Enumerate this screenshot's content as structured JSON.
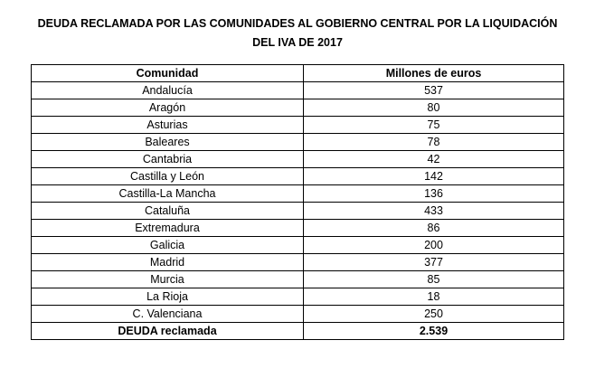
{
  "title": {
    "line1": "DEUDA RECLAMADA POR LAS COMUNIDADES AL GOBIERNO CENTRAL POR LA LIQUIDACIÓN",
    "line2": "DEL IVA DE 2017"
  },
  "table": {
    "headers": [
      "Comunidad",
      "Millones de euros"
    ],
    "rows": [
      [
        "Andalucía",
        "537"
      ],
      [
        "Aragón",
        "80"
      ],
      [
        "Asturias",
        "75"
      ],
      [
        "Baleares",
        "78"
      ],
      [
        "Cantabria",
        "42"
      ],
      [
        "Castilla y León",
        "142"
      ],
      [
        "Castilla-La Mancha",
        "136"
      ],
      [
        "Cataluña",
        "433"
      ],
      [
        "Extremadura",
        "86"
      ],
      [
        "Galicia",
        "200"
      ],
      [
        "Madrid",
        "377"
      ],
      [
        "Murcia",
        "85"
      ],
      [
        "La Rioja",
        "18"
      ],
      [
        "C. Valenciana",
        "250"
      ]
    ],
    "total": [
      "DEUDA reclamada",
      "2.539"
    ]
  }
}
